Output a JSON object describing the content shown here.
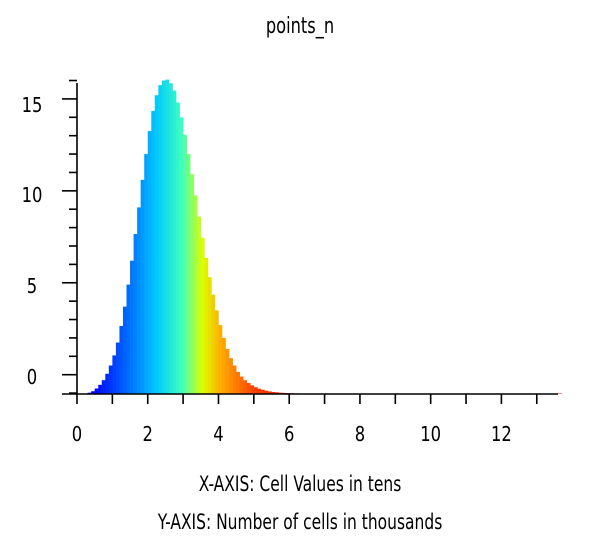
{
  "chart_data": {
    "type": "bar",
    "title": "points_n",
    "xlabel": "X-AXIS: Cell Values in tens",
    "ylabel": "Y-AXIS: Number of cells in thousands",
    "xlim": [
      0,
      13.6
    ],
    "ylim": [
      -0.85,
      16.5
    ],
    "x_ticks": [
      0,
      2,
      4,
      6,
      8,
      10,
      12
    ],
    "y_ticks": [
      0,
      5,
      10,
      15
    ],
    "grid": false,
    "colormap": "rainbow (blue to red)",
    "colors": {
      "low": "#0000ff",
      "mid_low": "#00b0ff",
      "mid": "#40ffc0",
      "mid_high": "#ffff00",
      "high": "#ff8000",
      "max": "#ff0000"
    },
    "bin_width": 0.1,
    "bins_start": 0.0,
    "values": [
      -0.85,
      -0.85,
      -0.82,
      -0.78,
      -0.7,
      -0.55,
      -0.35,
      -0.1,
      0.25,
      0.7,
      1.25,
      1.95,
      2.85,
      3.9,
      5.1,
      6.4,
      7.85,
      9.3,
      10.8,
      12.2,
      13.45,
      14.55,
      15.4,
      15.95,
      16.2,
      16.25,
      16.05,
      15.65,
      15.0,
      14.2,
      13.25,
      12.2,
      11.1,
      9.95,
      8.8,
      7.65,
      6.55,
      5.5,
      4.55,
      3.7,
      2.9,
      2.2,
      1.6,
      1.1,
      0.7,
      0.35,
      0.1,
      -0.1,
      -0.25,
      -0.38,
      -0.48,
      -0.56,
      -0.62,
      -0.67,
      -0.71,
      -0.74,
      -0.76,
      -0.78,
      -0.79,
      -0.8,
      -0.81,
      -0.82,
      -0.82,
      -0.83,
      -0.83,
      -0.83,
      -0.84,
      -0.84,
      -0.84,
      -0.84,
      -0.84,
      -0.84,
      -0.84,
      -0.84,
      -0.84,
      -0.84,
      -0.84,
      -0.84,
      -0.84,
      -0.84,
      -0.84,
      -0.84,
      -0.84,
      -0.84,
      -0.84,
      -0.84,
      -0.84,
      -0.84,
      -0.84,
      -0.84,
      -0.84,
      -0.84,
      -0.84,
      -0.84,
      -0.84,
      -0.84,
      -0.84,
      -0.84,
      -0.84,
      -0.84,
      -0.84,
      -0.84,
      -0.84,
      -0.84,
      -0.84,
      -0.84,
      -0.84,
      -0.84,
      -0.84,
      -0.84,
      -0.84,
      -0.84,
      -0.84,
      -0.84,
      -0.84,
      -0.84,
      -0.84,
      -0.84,
      -0.84,
      -0.84,
      -0.84,
      -0.84,
      -0.84,
      -0.84,
      -0.84,
      -0.84,
      -0.84,
      -0.84,
      -0.84,
      -0.84,
      -0.84,
      -0.84,
      -0.84,
      -0.84,
      -0.84,
      -0.84,
      -0.84
    ]
  }
}
